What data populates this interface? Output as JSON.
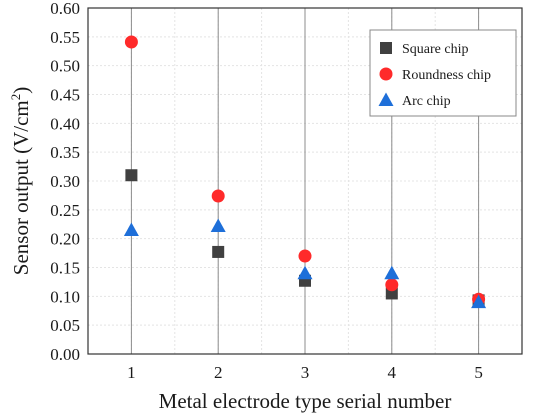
{
  "chart_data": {
    "type": "scatter",
    "xlabel": "Metal electrode type serial number",
    "ylabel": "Sensor output (V/cm²)",
    "ylabel_main": "Sensor output (V/cm",
    "ylabel_sup": "2",
    "ylabel_close": ")",
    "x_ticks": [
      "1",
      "2",
      "3",
      "4",
      "5"
    ],
    "y_ticks": [
      "0.00",
      "0.05",
      "0.10",
      "0.15",
      "0.20",
      "0.25",
      "0.30",
      "0.35",
      "0.40",
      "0.45",
      "0.50",
      "0.55",
      "0.60"
    ],
    "xlim": [
      0.5,
      5.5
    ],
    "ylim": [
      0,
      0.6
    ],
    "grid": true,
    "legend_position": "top-right",
    "series": [
      {
        "name": "Square chip",
        "marker": "square",
        "color": "#404040",
        "x": [
          1,
          2,
          3,
          4,
          5
        ],
        "y": [
          0.31,
          0.177,
          0.127,
          0.105,
          0.093
        ]
      },
      {
        "name": "Roundness chip",
        "marker": "circle",
        "color": "#ff2a2a",
        "x": [
          1,
          2,
          3,
          4,
          5
        ],
        "y": [
          0.541,
          0.274,
          0.17,
          0.12,
          0.095
        ]
      },
      {
        "name": "Arc chip",
        "marker": "triangle",
        "color": "#1e6fd9",
        "x": [
          1,
          2,
          3,
          4,
          5
        ],
        "y": [
          0.215,
          0.222,
          0.14,
          0.14,
          0.09
        ]
      }
    ]
  }
}
